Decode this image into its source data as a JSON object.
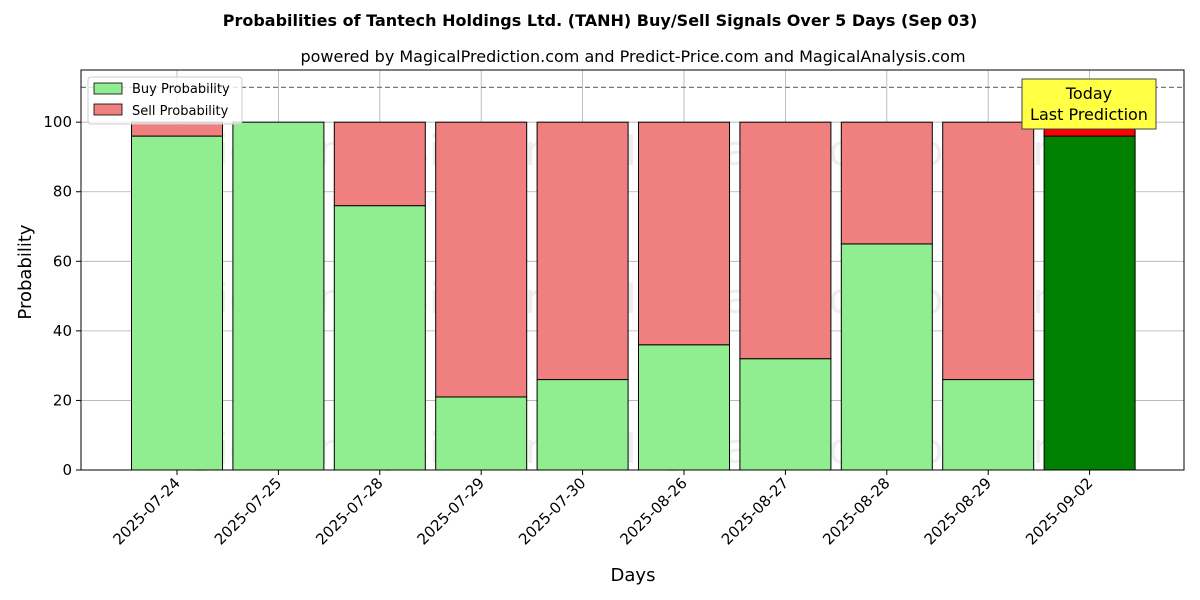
{
  "chart_data": {
    "type": "bar",
    "stacked": true,
    "title": "Probabilities of Tantech Holdings Ltd. (TANH) Buy/Sell Signals Over 5 Days (Sep 03)",
    "subtitle": "powered by MagicalPrediction.com and Predict-Price.com and MagicalAnalysis.com",
    "xlabel": "Days",
    "ylabel": "Probability",
    "ylim": [
      0,
      115
    ],
    "yticks": [
      0,
      20,
      40,
      60,
      80,
      100
    ],
    "grid": true,
    "reference_line": 110,
    "categories": [
      "2025-07-24",
      "2025-07-25",
      "2025-07-28",
      "2025-07-29",
      "2025-07-30",
      "2025-08-26",
      "2025-08-27",
      "2025-08-28",
      "2025-08-29",
      "2025-09-02"
    ],
    "series": [
      {
        "name": "Buy Probability",
        "color": "#90ee90",
        "values": [
          96,
          100,
          76,
          21,
          26,
          36,
          32,
          65,
          26,
          96
        ]
      },
      {
        "name": "Sell Probability",
        "color": "#f08080",
        "values": [
          4,
          0,
          24,
          79,
          74,
          64,
          68,
          35,
          74,
          4
        ]
      }
    ],
    "highlight": {
      "index": 9,
      "buy_color": "#008000",
      "sell_color": "#ff0000"
    },
    "legend": {
      "position": "top-left"
    },
    "annotation": {
      "lines": [
        "Today",
        "Last Prediction"
      ],
      "background": "#ffff44"
    },
    "watermarks": [
      "MagicalAnalysis.com",
      "MagicalPrediction.com"
    ]
  }
}
